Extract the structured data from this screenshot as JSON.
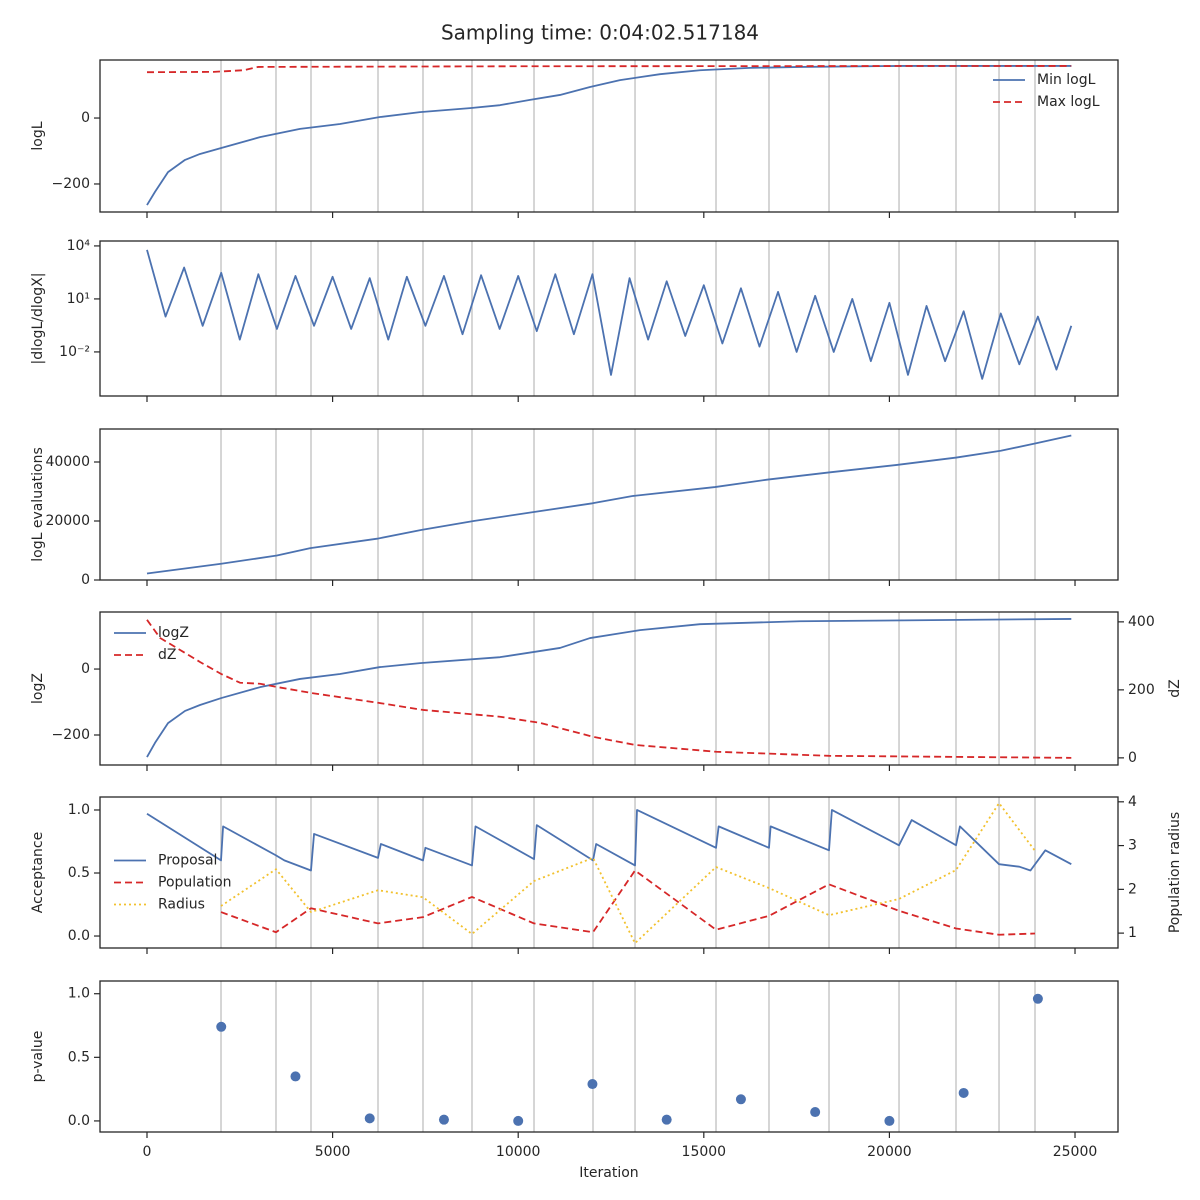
{
  "title": "Sampling time: 0:04:02.517184",
  "iteration_markers": [
    1994,
    3475,
    4418,
    6223,
    7435,
    8755,
    10426,
    12015,
    13147,
    15329,
    16756,
    18373,
    20259,
    21794,
    22953,
    23922
  ],
  "chart_data": [
    {
      "type": "line",
      "ylabel": "logL",
      "xlim": [
        -1266,
        26158
      ],
      "xticks": [
        0,
        5000,
        10000,
        15000,
        20000,
        25000
      ],
      "ylim": [
        -285,
        176
      ],
      "yticks": [
        {
          "value": -200,
          "label": "−200"
        },
        0
      ],
      "legend": "upper right",
      "series": [
        {
          "name": "Min logL",
          "color": "#4c72b0",
          "style": "solid",
          "x": [
            0,
            215,
            566,
            1024,
            1428,
            2000,
            3044,
            4122,
            5200,
            6277,
            7355,
            8700,
            9510,
            10318,
            11126,
            11935,
            12742,
            13820,
            14897,
            16245,
            17592,
            20285,
            22980,
            24900
          ],
          "values": [
            -264,
            -224,
            -164,
            -127,
            -109,
            -91,
            -58,
            -33,
            -18,
            3,
            18,
            30,
            39,
            55,
            70,
            94,
            115,
            133,
            145,
            152,
            155,
            158,
            158,
            158
          ]
        },
        {
          "name": "Max logL",
          "color": "#d62728",
          "style": "dashed",
          "x": [
            0,
            1800,
            2600,
            3000,
            10000,
            24900
          ],
          "values": [
            139,
            140,
            145,
            155,
            157,
            158
          ]
        }
      ]
    },
    {
      "type": "line",
      "ylabel": "|dlogL/dlogX|",
      "log": true,
      "xlim": [
        -1266,
        26158
      ],
      "xticks": [
        0,
        5000,
        10000,
        15000,
        20000,
        25000
      ],
      "ylim": [
        3.2e-05,
        19000
      ],
      "yticks": [
        {
          "value": 0.01,
          "label": "10⁻²"
        },
        {
          "value": 10,
          "label": "10¹"
        },
        {
          "value": 10000,
          "label": "10⁴"
        }
      ],
      "series": [
        {
          "name": "dlogL",
          "color": "#4c72b0",
          "style": "solid",
          "x": [
            0,
            500,
            1000,
            1500,
            2000,
            2500,
            3000,
            3500,
            4000,
            4500,
            5000,
            5500,
            6000,
            6500,
            7000,
            7500,
            8000,
            8500,
            9000,
            9500,
            10000,
            10500,
            11000,
            11500,
            12000,
            12500,
            13000,
            13500,
            14000,
            14500,
            15000,
            15500,
            16000,
            16500,
            17000,
            17500,
            18000,
            18500,
            19000,
            19500,
            20000,
            20500,
            21000,
            21500,
            22000,
            22500,
            23000,
            23500,
            24000,
            24500,
            24900
          ],
          "values": [
            6000,
            1,
            600,
            0.3,
            300,
            0.05,
            250,
            0.2,
            200,
            0.3,
            180,
            0.2,
            150,
            0.05,
            180,
            0.3,
            200,
            0.1,
            220,
            0.2,
            200,
            0.15,
            250,
            0.1,
            250,
            0.0005,
            150,
            0.05,
            100,
            0.08,
            60,
            0.03,
            40,
            0.02,
            25,
            0.01,
            15,
            0.01,
            10,
            0.003,
            6,
            0.0005,
            4,
            0.003,
            2,
            0.0003,
            1.5,
            0.002,
            1,
            0.001,
            0.3
          ]
        }
      ]
    },
    {
      "type": "line",
      "ylabel": "logL evaluations",
      "xlim": [
        -1266,
        26158
      ],
      "xticks": [
        0,
        5000,
        10000,
        15000,
        20000,
        25000
      ],
      "ylim": [
        0,
        51186
      ],
      "yticks": [
        0,
        20000,
        40000
      ],
      "series": [
        {
          "name": "evaluations",
          "color": "#4c72b0",
          "style": "solid",
          "x": [
            0,
            2000,
            3500,
            4400,
            6200,
            7400,
            8800,
            10400,
            12000,
            13100,
            15300,
            16700,
            18400,
            20200,
            21800,
            23000,
            24000,
            24900
          ],
          "values": [
            2200,
            5500,
            8300,
            10800,
            14000,
            17000,
            20000,
            23000,
            26000,
            28500,
            31500,
            34000,
            36500,
            39000,
            41500,
            43800,
            46500,
            49000
          ]
        }
      ]
    },
    {
      "type": "line",
      "ylabel": "logZ",
      "y2label": "dZ",
      "xlim": [
        -1266,
        26158
      ],
      "xticks": [
        0,
        5000,
        10000,
        15000,
        20000,
        25000
      ],
      "ylim": [
        -291,
        173
      ],
      "yticks": [
        {
          "value": -200,
          "label": "−200"
        },
        0
      ],
      "y2lim": [
        -21,
        429
      ],
      "y2ticks": [
        0,
        200,
        400
      ],
      "legend": "upper left",
      "series": [
        {
          "name": "logZ",
          "color": "#4c72b0",
          "style": "solid",
          "x": [
            0,
            215,
            566,
            1024,
            1428,
            2000,
            3044,
            4122,
            5200,
            6277,
            7355,
            9510,
            11126,
            11935,
            13281,
            14897,
            17592,
            24900
          ],
          "values": [
            -267,
            -224,
            -164,
            -127,
            -109,
            -88,
            -55,
            -30,
            -15,
            6,
            18,
            36,
            64,
            94,
            118,
            136,
            145,
            152
          ]
        },
        {
          "name": "dZ",
          "color": "#d62728",
          "style": "dashed",
          "axis": "y2",
          "x": [
            0,
            350,
            1428,
            1994,
            2505,
            3044,
            3475,
            4418,
            6223,
            7435,
            9510,
            10587,
            12015,
            13147,
            15329,
            18373,
            24900
          ],
          "values": [
            406,
            353,
            282,
            247,
            221,
            218,
            209,
            191,
            162,
            141,
            121,
            103,
            62,
            38,
            18,
            6,
            0
          ]
        }
      ]
    },
    {
      "type": "line",
      "ylabel": "Acceptance",
      "y2label": "Population radius",
      "xlim": [
        -1266,
        26158
      ],
      "xticks": [
        0,
        5000,
        10000,
        15000,
        20000,
        25000
      ],
      "ylim": [
        -0.095,
        1.103
      ],
      "yticks": [
        {
          "value": 0,
          "label": "0.0"
        },
        0.5,
        {
          "value": 1,
          "label": "1.0"
        }
      ],
      "y2lim": [
        0.66,
        4.11
      ],
      "y2ticks": [
        1,
        2,
        3,
        4
      ],
      "legend": "center left",
      "series": [
        {
          "name": "Proposal",
          "color": "#4c72b0",
          "style": "solid",
          "x": [
            0,
            1994,
            2050,
            3475,
            3700,
            4418,
            4500,
            6223,
            6300,
            7435,
            7500,
            8755,
            8850,
            10426,
            10500,
            12015,
            12100,
            13147,
            13200,
            15329,
            15400,
            16756,
            16800,
            18373,
            18450,
            20259,
            20600,
            21794,
            21900,
            22953,
            23500,
            23800,
            24200,
            24900
          ],
          "values": [
            0.97,
            0.6,
            0.87,
            0.64,
            0.6,
            0.52,
            0.81,
            0.62,
            0.73,
            0.6,
            0.7,
            0.56,
            0.87,
            0.61,
            0.88,
            0.6,
            0.73,
            0.56,
            1.0,
            0.7,
            0.87,
            0.7,
            0.87,
            0.68,
            1.0,
            0.72,
            0.92,
            0.72,
            0.87,
            0.57,
            0.55,
            0.52,
            0.68,
            0.57
          ]
        },
        {
          "name": "Population",
          "color": "#d62728",
          "style": "dashed",
          "x": [
            1994,
            3475,
            4418,
            6223,
            7435,
            8755,
            10426,
            12015,
            13147,
            15329,
            16756,
            18373,
            20259,
            21794,
            22953,
            23922
          ],
          "values": [
            0.19,
            0.03,
            0.22,
            0.1,
            0.15,
            0.31,
            0.1,
            0.03,
            0.52,
            0.05,
            0.16,
            0.41,
            0.2,
            0.06,
            0.01,
            0.02
          ]
        },
        {
          "name": "Radius",
          "color": "#f2c12e",
          "style": "dotted",
          "axis": "y2",
          "x": [
            1994,
            3475,
            4418,
            6223,
            7435,
            8755,
            10426,
            12015,
            13147,
            15329,
            16756,
            18373,
            20259,
            21794,
            22953,
            23922
          ],
          "values": [
            1.62,
            2.46,
            1.48,
            1.98,
            1.82,
            0.98,
            2.19,
            2.72,
            0.77,
            2.51,
            2.03,
            1.41,
            1.78,
            2.44,
            3.97,
            2.88
          ]
        }
      ]
    },
    {
      "type": "scatter",
      "ylabel": "p-value",
      "xlabel": "Iteration",
      "xlim": [
        -1266,
        26158
      ],
      "xticks": [
        0,
        5000,
        10000,
        15000,
        20000,
        25000
      ],
      "ylim": [
        -0.087,
        1.1
      ],
      "yticks": [
        {
          "value": 0,
          "label": "0.0"
        },
        0.5,
        {
          "value": 1,
          "label": "1.0"
        }
      ],
      "series": [
        {
          "name": "p-value",
          "color": "#4c72b0",
          "x": [
            2000,
            4000,
            6000,
            8000,
            10000,
            12000,
            14000,
            16000,
            18000,
            20000,
            22000,
            24000
          ],
          "values": [
            0.74,
            0.35,
            0.02,
            0.01,
            0.0,
            0.29,
            0.01,
            0.17,
            0.07,
            0.0,
            0.22,
            0.96
          ]
        }
      ]
    }
  ]
}
